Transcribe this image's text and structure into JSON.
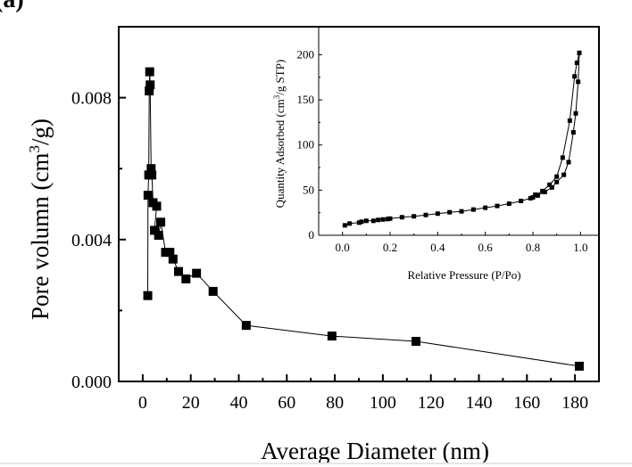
{
  "panel_label": "(a)",
  "chart_data": [
    {
      "type": "line",
      "xlabel": "Average Diameter (nm)",
      "ylabel": {
        "prefix": "Pore volumn (cm",
        "sup": "3",
        "suffix": "/g)"
      },
      "xlim": [
        -10,
        190
      ],
      "ylim": [
        0,
        0.01
      ],
      "x_ticks": [
        "0",
        "20",
        "40",
        "60",
        "80",
        "100",
        "120",
        "140",
        "160",
        "180"
      ],
      "x_tick_values": [
        0,
        20,
        40,
        60,
        80,
        100,
        120,
        140,
        160,
        180
      ],
      "y_ticks": [
        "0.000",
        "0.004",
        "0.008"
      ],
      "y_tick_values": [
        0,
        0.004,
        0.008
      ],
      "marker": "square",
      "color": "#000000",
      "grid": false,
      "series": [
        {
          "x": [
            181.8,
            113.8,
            78.8,
            43.1,
            29.3,
            22.4,
            18.0,
            14.9,
            12.6,
            11.3,
            9.5,
            7.5,
            6.6,
            4.9,
            5.8,
            4.3,
            3.8,
            3.5,
            3.1,
            2.9,
            2.7,
            2.5,
            2.2,
            2.1
          ],
          "y": [
            0.00043,
            0.00113,
            0.00128,
            0.00158,
            0.00254,
            0.00305,
            0.00289,
            0.0031,
            0.00345,
            0.00364,
            0.00364,
            0.00449,
            0.00412,
            0.00426,
            0.00494,
            0.00504,
            0.00582,
            0.006,
            0.00836,
            0.00873,
            0.00819,
            0.00582,
            0.00525,
            0.00242
          ]
        }
      ]
    },
    {
      "type": "line",
      "inset": true,
      "xlabel": "Relative Pressure (P/Po)",
      "ylabel": {
        "prefix": "Quantity Adsorbed (cm",
        "sup": "3",
        "suffix": "/g STP)"
      },
      "xlim": [
        -0.1,
        1.1
      ],
      "ylim": [
        0,
        230
      ],
      "x_ticks": [
        "0.0",
        "0.2",
        "0.4",
        "0.6",
        "0.8",
        "1.0"
      ],
      "x_tick_values": [
        0,
        0.2,
        0.4,
        0.6,
        0.8,
        1.0
      ],
      "y_ticks": [
        "0",
        "50",
        "100",
        "150",
        "200"
      ],
      "y_tick_values": [
        0,
        50,
        100,
        150,
        200
      ],
      "marker": "square",
      "color": "#000000",
      "grid": false,
      "series": [
        {
          "x": [
            0.01,
            0.03,
            0.07,
            0.08,
            0.1,
            0.13,
            0.15,
            0.17,
            0.19,
            0.2,
            0.25,
            0.3,
            0.35,
            0.4,
            0.45,
            0.5,
            0.55,
            0.6,
            0.65,
            0.7,
            0.75,
            0.79,
            0.8,
            0.82,
            0.85,
            0.88,
            0.9,
            0.93,
            0.95,
            0.97,
            0.98,
            0.99,
            0.995
          ],
          "y": [
            11,
            13,
            14,
            15,
            16,
            16,
            17,
            17.5,
            18,
            18.5,
            20,
            21,
            22.5,
            24,
            25.5,
            26.5,
            28.5,
            30.5,
            32.5,
            35,
            38,
            41,
            42,
            44,
            48,
            53,
            59,
            67,
            81,
            114,
            135,
            170,
            202
          ]
        },
        {
          "x": [
            0.995,
            0.985,
            0.975,
            0.955,
            0.925,
            0.9,
            0.87,
            0.84,
            0.81
          ],
          "y": [
            202,
            191,
            176,
            127,
            86,
            65,
            56,
            49,
            45
          ]
        }
      ]
    }
  ]
}
